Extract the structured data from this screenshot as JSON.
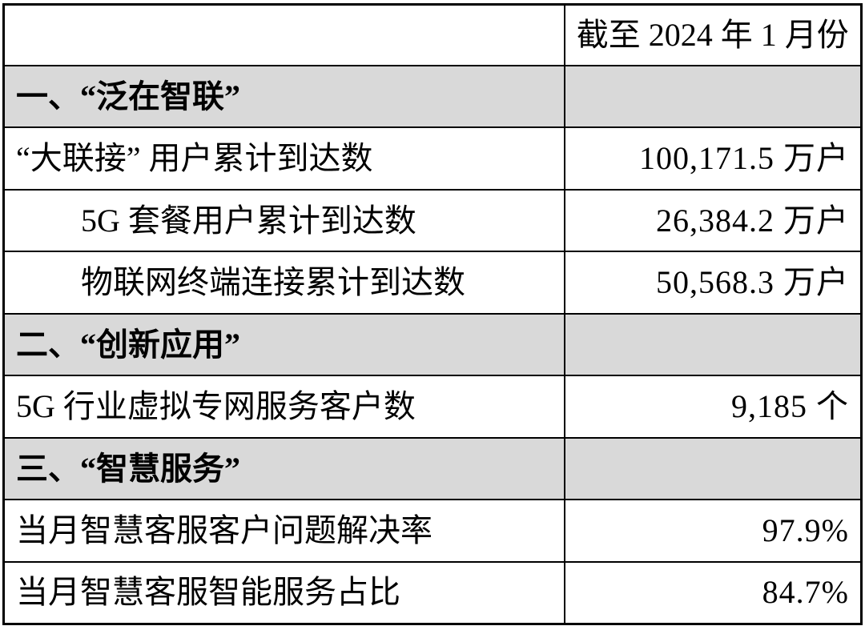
{
  "header": {
    "corner": "",
    "period": "截至 2024 年 1 月份"
  },
  "rows": [
    {
      "type": "section",
      "label": "一、“泛在智联”",
      "value": ""
    },
    {
      "type": "data",
      "label": "“大联接” 用户累计到达数",
      "value": "100,171.5 万户"
    },
    {
      "type": "data-indent",
      "label": "5G 套餐用户累计到达数",
      "value": "26,384.2 万户"
    },
    {
      "type": "data-indent",
      "label": "物联网终端连接累计到达数",
      "value": "50,568.3 万户"
    },
    {
      "type": "section",
      "label": "二、“创新应用”",
      "value": ""
    },
    {
      "type": "data",
      "label": "5G 行业虚拟专网服务客户数",
      "value": "9,185 个"
    },
    {
      "type": "section",
      "label": "三、“智慧服务”",
      "value": ""
    },
    {
      "type": "data",
      "label": "当月智慧客服客户问题解决率",
      "value": "97.9%"
    },
    {
      "type": "data",
      "label": "当月智慧客服智能服务占比",
      "value": "84.7%"
    }
  ],
  "colors": {
    "section_bg": "#d9d9d9",
    "border": "#000000",
    "background": "#ffffff"
  }
}
